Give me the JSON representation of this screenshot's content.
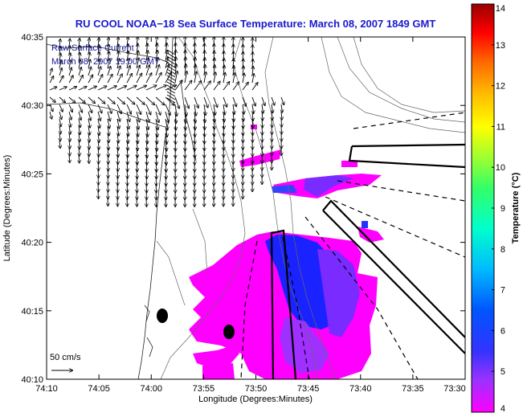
{
  "title": "RU COOL  NOAA−18  Sea Surface Temperature:  March 08, 2007 1849 GMT",
  "current_legend": {
    "line1": "Raw Surface Current",
    "line2": "March 08, 2007 19:00 GMT",
    "scale_label": "50 cm/s"
  },
  "x_axis": {
    "label": "Longitude (Degrees:Minutes)",
    "ticks": [
      "74:10",
      "74:05",
      "74:00",
      "73:55",
      "73:50",
      "73:45",
      "73:40",
      "73:35",
      "73:30"
    ]
  },
  "y_axis": {
    "label": "Latitude (Degrees:Minutes)",
    "ticks": [
      "40:35",
      "40:30",
      "40:25",
      "40:20",
      "40:15",
      "40:10"
    ]
  },
  "colorbar": {
    "label": "Temperature (°C)",
    "ticks": [
      "14",
      "13",
      "12",
      "11",
      "10",
      "9",
      "8",
      "7",
      "6",
      "5",
      "4"
    ],
    "min": 4,
    "max": 14
  },
  "colors": {
    "title": "#1a1acc",
    "sst_cold": "#ff00ff",
    "sst_mid": "#7a2bff",
    "sst_blue": "#1a22ff"
  }
}
